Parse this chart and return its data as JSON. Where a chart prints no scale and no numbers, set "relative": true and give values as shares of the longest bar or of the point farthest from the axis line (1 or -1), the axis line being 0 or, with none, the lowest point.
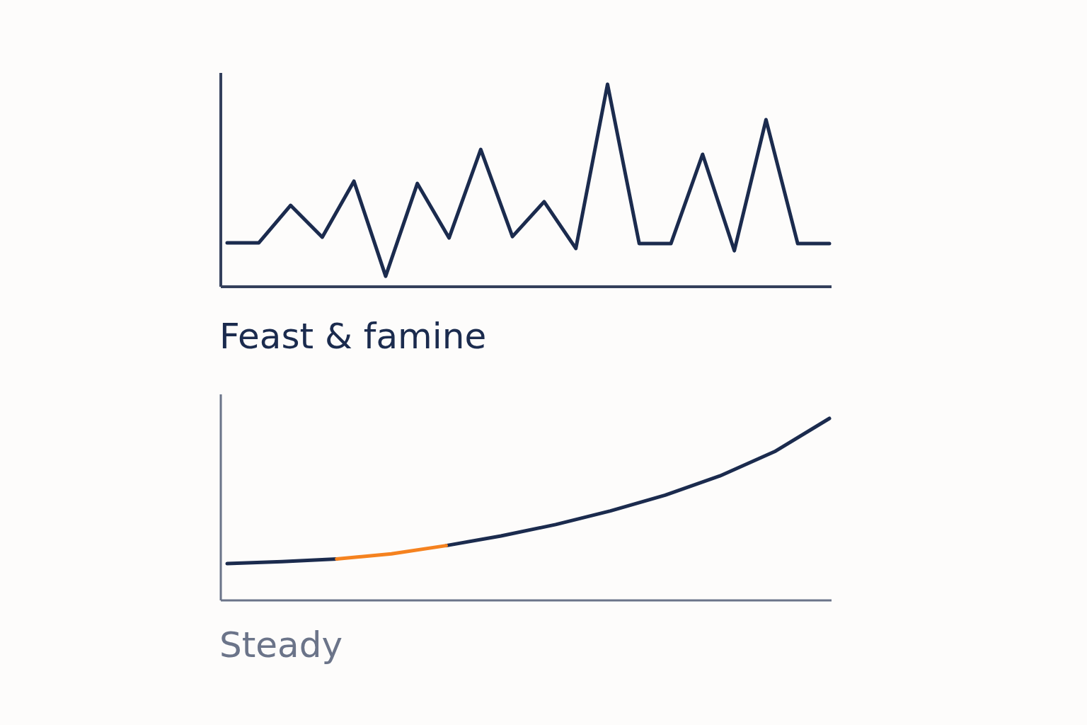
{
  "chart_data": [
    {
      "type": "line",
      "title": "Feast & famine",
      "relative": true,
      "marker": "none",
      "line_style": "solid",
      "categories": [
        null,
        null,
        null,
        null,
        null,
        null,
        null,
        null,
        null,
        null,
        null,
        null,
        null,
        null,
        null,
        null,
        null,
        null,
        null,
        null
      ],
      "series": [
        {
          "color": "#1b2b4e",
          "values": [
            0.217,
            0.217,
            0.402,
            0.245,
            0.521,
            0.052,
            0.51,
            0.241,
            0.678,
            0.248,
            0.42,
            0.189,
            1,
            0.213,
            0.213,
            0.654,
            0.178,
            0.825,
            0.213,
            0.213
          ]
        }
      ]
    },
    {
      "type": "line",
      "title": "Steady",
      "relative": true,
      "marker": "none",
      "line_style": "solid",
      "categories": [
        null,
        null,
        null,
        null,
        null,
        null,
        null,
        null,
        null,
        null,
        null,
        null
      ],
      "series": [
        {
          "color": "#1b2b4e",
          "values": [
            0.202,
            0.213,
            0.228,
            null,
            0.301,
            0.354,
            0.417,
            0.492,
            0.578,
            0.684,
            0.818,
            1
          ]
        },
        {
          "color": "#f5821f",
          "values": [
            null,
            null,
            0.228,
            0.256,
            0.301,
            null,
            null,
            null,
            null,
            null,
            null,
            null
          ]
        }
      ]
    }
  ]
}
